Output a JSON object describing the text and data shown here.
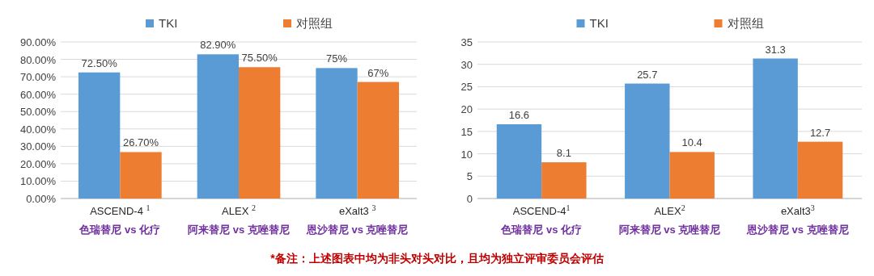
{
  "chart_data": [
    {
      "type": "bar",
      "categories": [
        "ASCEND-4 $^{1}$\n色瑞替尼 vs 化疗",
        "ALEX $^{2}$\n阿来替尼 vs 克唑替尼",
        "eXalt3 $^{3}$\n恩沙替尼 vs 克唑替尼"
      ],
      "series": [
        {
          "name": "TKI",
          "color": "#5b9bd5",
          "values": [
            72.5,
            82.9,
            75
          ],
          "value_labels": [
            "72.50%",
            "82.90%",
            "75%"
          ]
        },
        {
          "name": "对照组",
          "color": "#ed7d31",
          "values": [
            26.7,
            75.5,
            67
          ],
          "value_labels": [
            "26.70%",
            "75.50%",
            "67%"
          ]
        }
      ],
      "ylim": [
        0,
        90
      ],
      "yticks": [
        {
          "value": 0,
          "label": "0.00%"
        },
        {
          "value": 10,
          "label": "10.00%"
        },
        {
          "value": 20,
          "label": "20.00%"
        },
        {
          "value": 30,
          "label": "30.00%"
        },
        {
          "value": 40,
          "label": "40.00%"
        },
        {
          "value": 50,
          "label": "50.00%"
        },
        {
          "value": 60,
          "label": "60.00%"
        },
        {
          "value": 70,
          "label": "70.00%"
        },
        {
          "value": 80,
          "label": "80.00%"
        },
        {
          "value": 90,
          "label": "90.00%"
        }
      ],
      "grid": "y",
      "legend": "top"
    },
    {
      "type": "bar",
      "categories": [
        "ASCEND-4$^{1}$\n色瑞替尼 vs 化疗",
        "ALEX$^{2}$\n阿来替尼 vs 克唑替尼",
        "eXalt3$^{3}$\n恩沙替尼 vs 克唑替尼"
      ],
      "series": [
        {
          "name": "TKI",
          "color": "#5b9bd5",
          "values": [
            16.6,
            25.7,
            31.3
          ]
        },
        {
          "name": "对照组",
          "color": "#ed7d31",
          "values": [
            8.1,
            10.4,
            12.7
          ]
        }
      ],
      "ylim": [
        0,
        35
      ],
      "yticks": [
        0,
        5,
        10,
        15,
        20,
        25,
        30,
        35
      ],
      "grid": "y",
      "legend": "top",
      "data_labels": true,
      "annotations": [
        "*备注：上述图表中均为非头对头对比，且均为独立评审委员会评估"
      ]
    }
  ]
}
